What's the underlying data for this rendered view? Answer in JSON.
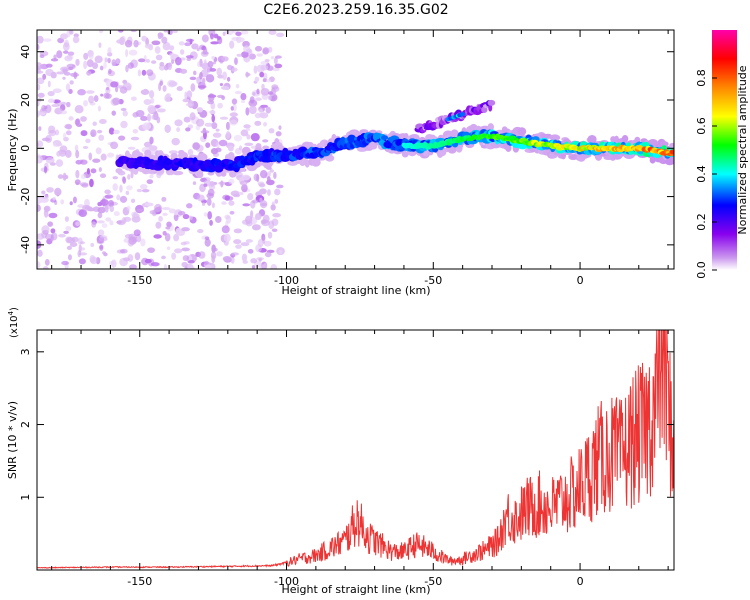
{
  "title": "C2E6.2023.259.16.35.G02",
  "chart_data": [
    {
      "type": "heatmap",
      "xlabel": "Height of straight line (km)",
      "ylabel": "Frequency (Hz)",
      "xlim": [
        -185,
        32
      ],
      "ylim": [
        -50,
        49
      ],
      "xticks": [
        -150,
        -100,
        -50,
        0
      ],
      "yticks": [
        -40,
        -20,
        0,
        20,
        40
      ],
      "colorbar": {
        "label": "Normalized spectral amplitude",
        "range": [
          0,
          1
        ],
        "ticks": [
          0.0,
          0.2,
          0.4,
          0.6,
          0.8
        ],
        "colormap": [
          "#ffffff",
          "#cc99ee",
          "#8800ee",
          "#0000ff",
          "#00ffff",
          "#00ff00",
          "#ffff00",
          "#ff8800",
          "#ff0000",
          "#ff00aa"
        ]
      },
      "noise_region_x": [
        -185,
        -102
      ],
      "ridge": {
        "x": [
          -157,
          -145,
          -130,
          -118,
          -110,
          -100,
          -90,
          -80,
          -70,
          -60,
          -50,
          -40,
          -30,
          -20,
          -10,
          0,
          10,
          20,
          30
        ],
        "y": [
          -6,
          -6,
          -7,
          -7,
          -3,
          -3,
          -2,
          2,
          4,
          1,
          1,
          4,
          5,
          3,
          1,
          0,
          0,
          0,
          -2
        ]
      },
      "branch": {
        "x": [
          -55,
          -45,
          -38,
          -30
        ],
        "y": [
          8,
          12,
          15,
          18
        ]
      }
    },
    {
      "type": "line",
      "xlabel": "Height of straight line (km)",
      "ylabel": "SNR (10 * v/v)",
      "y_multiplier": "(x10",
      "y_multiplier_exp": "4",
      "y_multiplier_close": ")",
      "xlim": [
        -185,
        32
      ],
      "ylim": [
        0,
        3.3
      ],
      "xticks": [
        -150,
        -100,
        -50,
        0
      ],
      "yticks": [
        1,
        2,
        3
      ],
      "color": "#ee3333",
      "x": [
        -185,
        -160,
        -140,
        -120,
        -105,
        -100,
        -95,
        -90,
        -85,
        -80,
        -76,
        -72,
        -68,
        -64,
        -60,
        -56,
        -52,
        -48,
        -44,
        -40,
        -36,
        -32,
        -28,
        -25,
        -22,
        -18,
        -14,
        -10,
        -6,
        -2,
        2,
        6,
        10,
        14,
        18,
        22,
        26,
        28,
        30,
        32
      ],
      "y": [
        0.03,
        0.04,
        0.04,
        0.05,
        0.06,
        0.1,
        0.16,
        0.2,
        0.3,
        0.4,
        0.7,
        0.45,
        0.35,
        0.25,
        0.25,
        0.35,
        0.3,
        0.2,
        0.12,
        0.15,
        0.22,
        0.28,
        0.4,
        0.75,
        0.7,
        0.85,
        0.9,
        0.85,
        0.95,
        1.05,
        1.25,
        1.5,
        1.6,
        1.55,
        1.8,
        1.9,
        2.3,
        3.2,
        2.2,
        1.7
      ]
    }
  ]
}
